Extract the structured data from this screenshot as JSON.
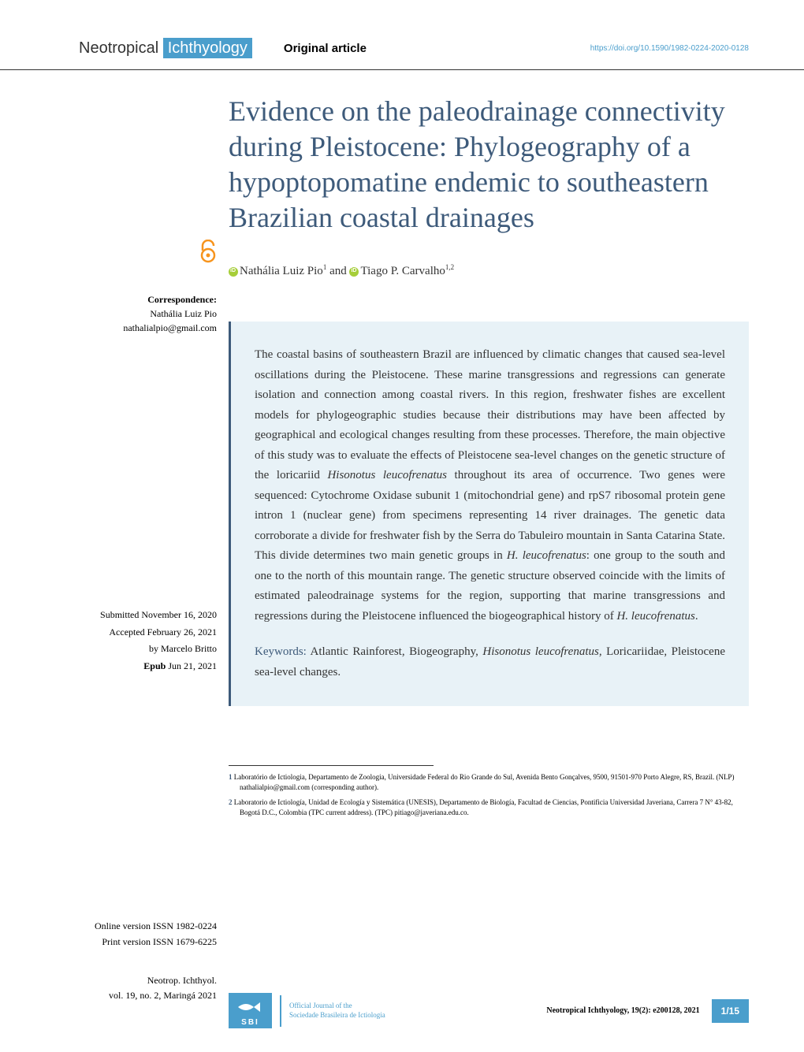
{
  "header": {
    "journal_prefix": "Neotropical",
    "journal_highlight": "Ichthyology",
    "article_type": "Original article",
    "doi": "https://doi.org/10.1590/1982-0224-2020-0128"
  },
  "title": "Evidence on the paleodrainage connectivity during Pleistocene: Phylogeography of a hypoptopomatine endemic to southeastern Brazilian coastal drainages",
  "correspondence": {
    "label": "Correspondence:",
    "name": "Nathália Luiz Pio",
    "email": "nathalialpio@gmail.com"
  },
  "authors": {
    "author1": "Nathália Luiz Pio",
    "author1_sup": "1",
    "connector": " and ",
    "author2": "Tiago P. Carvalho",
    "author2_sup": "1,2"
  },
  "abstract": "The coastal basins of southeastern Brazil are influenced by climatic changes that caused sea-level oscillations during the Pleistocene. These marine transgressions and regressions can generate isolation and connection among coastal rivers. In this region, freshwater fishes are excellent models for phylogeographic studies because their distributions may have been affected by geographical and ecological changes resulting from these processes. Therefore, the main objective of this study was to evaluate the effects of Pleistocene sea-level changes on the genetic structure of the loricariid Hisonotus leucofrenatus throughout its area of occurrence. Two genes were sequenced: Cytochrome Oxidase subunit 1 (mitochondrial gene) and rpS7 ribosomal protein gene intron 1 (nuclear gene) from specimens representing 14 river drainages. The genetic data corroborate a divide for freshwater fish by the Serra do Tabuleiro mountain in Santa Catarina State. This divide determines two main genetic groups in H. leucofrenatus: one group to the south and one to the north of this mountain range. The genetic structure observed coincide with the limits of estimated paleodrainage systems for the region, supporting that marine transgressions and regressions during the Pleistocene influenced the biogeographical history of H. leucofrenatus.",
  "keywords": {
    "label": "Keywords:",
    "text": " Atlantic Rainforest, Biogeography, Hisonotus leucofrenatus, Loricariidae, Pleistocene sea-level changes."
  },
  "submission": {
    "submitted": "Submitted November 16, 2020",
    "accepted": "Accepted February 26, 2021",
    "editor": "by Marcelo Britto",
    "epub_label": "Epub",
    "epub_date": " Jun 21, 2021"
  },
  "versions": {
    "online_label": "Online version ",
    "online_issn": "ISSN 1982-0224",
    "print_label": "Print version ",
    "print_issn": "ISSN 1679-6225"
  },
  "journal_ref": {
    "abbrev": "Neotrop. Ichthyol.",
    "volume": "vol. 19, no. 2, Maringá 2021"
  },
  "affiliations": {
    "a1_num": "1",
    "a1_text": " Laboratório de Ictiologia, Departamento de Zoologia, Universidade Federal do Rio Grande do Sul, Avenida Bento Gonçalves, 9500, 91501-970 Porto Alegre, RS, Brazil. (NLP) nathalialpio@gmail.com (corresponding author).",
    "a2_num": "2",
    "a2_text": " Laboratorio de Ictiología, Unidad de Ecología y Sistemática (UNESIS), Departamento de Biología, Facultad de Ciencias, Pontificia Universidad Javeriana, Carrera 7 N° 43-82, Bogotá D.C., Colombia (TPC current address). (TPC) pitiago@javeriana.edu.co."
  },
  "footer": {
    "sbi": "SBI",
    "official": "Official Journal of the",
    "society": "Sociedade Brasileira de Ictiologia",
    "citation": "Neotropical Ichthyology, 19(2): e200128, 2021",
    "page": "1/15"
  },
  "colors": {
    "primary_blue": "#3d5a7a",
    "light_blue": "#4a9ecc",
    "abstract_bg": "#e8f2f7",
    "orange": "#f7941d",
    "orcid_green": "#a6ce39"
  }
}
